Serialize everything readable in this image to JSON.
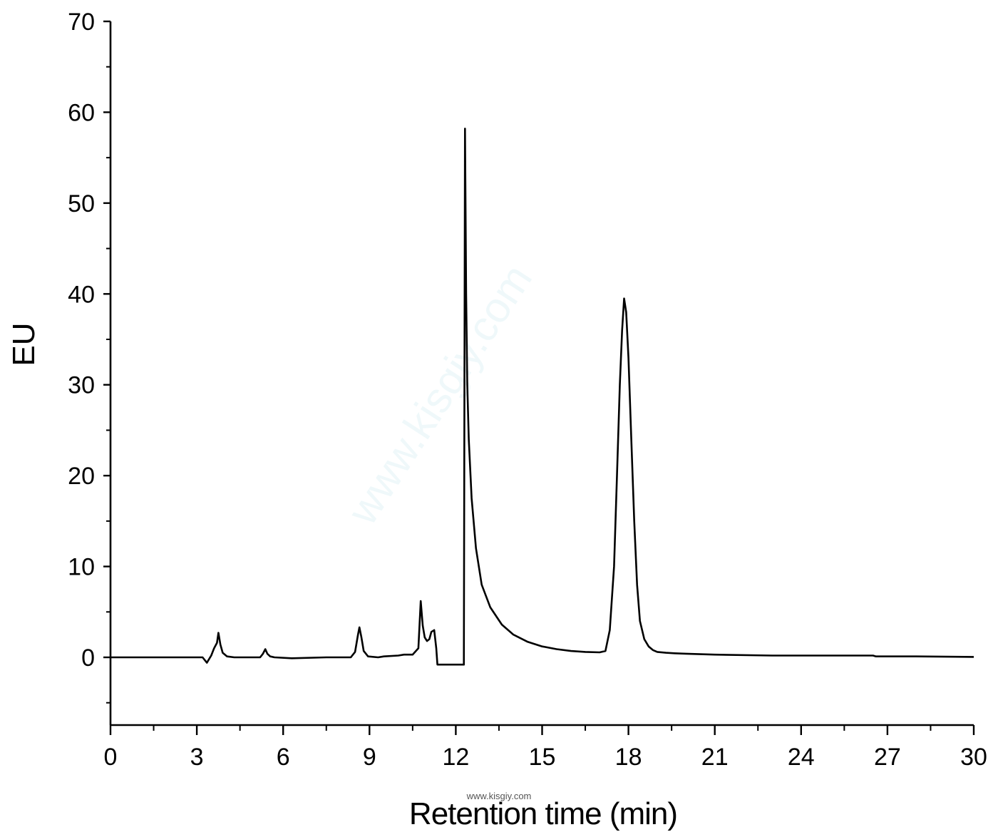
{
  "chart_data": {
    "type": "line",
    "title": "",
    "xlabel": "Retention time (min)",
    "ylabel": "EU",
    "xlim": [
      0,
      30
    ],
    "ylim": [
      -7.5,
      70
    ],
    "x_ticks": [
      0,
      3,
      6,
      9,
      12,
      15,
      18,
      21,
      24,
      27,
      30
    ],
    "x_tick_labels": [
      "0",
      "3",
      "6",
      "9",
      "12",
      "15",
      "18",
      "21",
      "24",
      "27",
      "30"
    ],
    "y_ticks": [
      0,
      10,
      20,
      30,
      40,
      50,
      60,
      70
    ],
    "y_tick_labels": [
      "0",
      "10",
      "20",
      "30",
      "40",
      "50",
      "60",
      "70"
    ],
    "grid": false,
    "legend": "none",
    "line_color": "#000000",
    "series": [
      {
        "x": [
          0,
          3.2,
          3.35,
          3.5,
          3.6,
          3.7,
          3.75,
          3.82,
          3.9,
          4.05,
          4.3,
          5.2,
          5.3,
          5.38,
          5.45,
          5.55,
          5.7,
          6.3,
          7.5,
          8.35,
          8.5,
          8.6,
          8.65,
          8.72,
          8.8,
          8.95,
          9.3,
          9.5,
          10.0,
          10.2,
          10.5,
          10.7,
          10.78,
          10.85,
          10.92,
          11.0,
          11.08,
          11.15,
          11.25,
          11.32,
          11.36,
          11.4,
          12.28,
          12.32,
          12.36,
          12.4,
          12.45,
          12.55,
          12.7,
          12.9,
          13.2,
          13.6,
          14.0,
          14.5,
          15.0,
          15.5,
          16.0,
          16.5,
          17.0,
          17.2,
          17.35,
          17.5,
          17.6,
          17.7,
          17.78,
          17.85,
          17.92,
          18.0,
          18.1,
          18.2,
          18.3,
          18.4,
          18.55,
          18.7,
          18.85,
          19.0,
          19.3,
          19.6,
          20.0,
          21.0,
          23.0,
          26.5,
          26.6,
          28.0,
          30.0
        ],
        "y": [
          0,
          0,
          -0.6,
          0.2,
          1.0,
          1.6,
          2.7,
          1.4,
          0.5,
          0.1,
          0,
          0,
          0.4,
          0.9,
          0.4,
          0.1,
          0,
          -0.1,
          0,
          0,
          0.6,
          2.5,
          3.3,
          2.2,
          0.7,
          0.1,
          0,
          0.1,
          0.2,
          0.3,
          0.3,
          1.0,
          6.2,
          3.5,
          2.2,
          1.8,
          2.0,
          2.8,
          3.0,
          1.0,
          -0.8,
          -0.8,
          -0.8,
          58.2,
          40.0,
          30.0,
          24.0,
          17.5,
          12.0,
          8.0,
          5.5,
          3.6,
          2.5,
          1.7,
          1.2,
          0.9,
          0.7,
          0.6,
          0.55,
          0.7,
          3.0,
          10.0,
          20.0,
          30.0,
          36.0,
          39.5,
          38.0,
          33.0,
          24.0,
          15.0,
          8.0,
          4.0,
          2.0,
          1.2,
          0.8,
          0.6,
          0.5,
          0.45,
          0.4,
          0.3,
          0.2,
          0.2,
          0.1,
          0.1,
          0.05
        ]
      }
    ]
  },
  "watermark": {
    "bottom_text": "www.kisgiy.com",
    "diagonal_text": "www.kisgiy.com"
  }
}
